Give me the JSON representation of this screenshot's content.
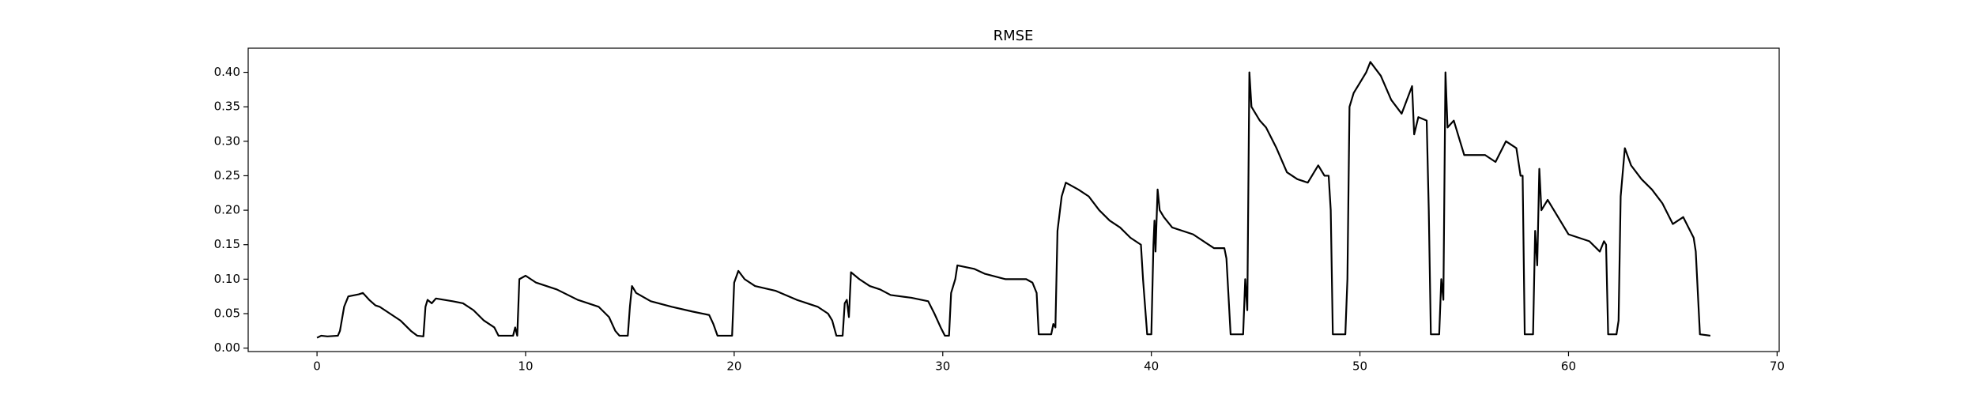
{
  "chart_data": {
    "type": "line",
    "title": "RMSE",
    "color": "#000000",
    "x": [
      0,
      0.2,
      0.5,
      1.0,
      1.1,
      1.3,
      1.5,
      2.0,
      2.2,
      2.5,
      2.8,
      3.0,
      3.5,
      4.0,
      4.5,
      4.8,
      5.1,
      5.2,
      5.3,
      5.5,
      5.7,
      6.5,
      7.0,
      7.5,
      8.0,
      8.5,
      8.7,
      9.4,
      9.5,
      9.6,
      9.7,
      10.0,
      10.5,
      11.5,
      12.5,
      13.5,
      14.0,
      14.3,
      14.5,
      14.9,
      15.0,
      15.1,
      15.3,
      16.0,
      17.0,
      18.0,
      18.8,
      19.0,
      19.2,
      19.9,
      20.0,
      20.2,
      20.5,
      21.0,
      22.0,
      23.0,
      24.0,
      24.5,
      24.7,
      24.9,
      25.2,
      25.3,
      25.4,
      25.5,
      25.6,
      26.0,
      26.5,
      27.0,
      27.5,
      28.5,
      29.3,
      29.6,
      29.9,
      30.1,
      30.3,
      30.4,
      30.6,
      30.7,
      31.5,
      32.0,
      33.0,
      34.0,
      34.3,
      34.5,
      34.6,
      35.2,
      35.3,
      35.4,
      35.5,
      35.7,
      35.9,
      36.5,
      37.0,
      37.5,
      38.0,
      38.5,
      39.0,
      39.5,
      39.6,
      39.8,
      40.0,
      40.1,
      40.15,
      40.2,
      40.3,
      40.4,
      40.6,
      41.0,
      42.0,
      43.0,
      43.5,
      43.6,
      43.8,
      44.4,
      44.5,
      44.6,
      44.7,
      44.8,
      45.2,
      45.5,
      46.0,
      46.5,
      47.0,
      47.5,
      48.0,
      48.3,
      48.5,
      48.6,
      48.7,
      49.3,
      49.4,
      49.5,
      49.7,
      50.0,
      50.3,
      50.5,
      51.0,
      51.5,
      52.0,
      52.5,
      52.6,
      52.8,
      53.2,
      53.3,
      53.4,
      53.8,
      53.9,
      54.0,
      54.1,
      54.2,
      54.5,
      55.0,
      55.5,
      56.0,
      56.5,
      57.0,
      57.5,
      57.7,
      57.8,
      57.9,
      58.3,
      58.4,
      58.5,
      58.6,
      58.7,
      59.0,
      59.5,
      60.0,
      61.0,
      61.5,
      61.7,
      61.8,
      61.9,
      62.3,
      62.4,
      62.5,
      62.7,
      63.0,
      63.5,
      64.0,
      64.5,
      65.0,
      65.5,
      66.0,
      66.1,
      66.3,
      66.8
    ],
    "values": [
      0.015,
      0.018,
      0.017,
      0.018,
      0.025,
      0.06,
      0.075,
      0.078,
      0.08,
      0.07,
      0.062,
      0.06,
      0.05,
      0.04,
      0.025,
      0.018,
      0.017,
      0.06,
      0.07,
      0.065,
      0.072,
      0.068,
      0.065,
      0.055,
      0.04,
      0.03,
      0.018,
      0.018,
      0.03,
      0.018,
      0.1,
      0.105,
      0.095,
      0.085,
      0.07,
      0.06,
      0.045,
      0.025,
      0.018,
      0.018,
      0.06,
      0.09,
      0.08,
      0.068,
      0.06,
      0.053,
      0.048,
      0.035,
      0.018,
      0.018,
      0.095,
      0.112,
      0.1,
      0.09,
      0.083,
      0.07,
      0.06,
      0.05,
      0.04,
      0.018,
      0.018,
      0.065,
      0.07,
      0.045,
      0.11,
      0.1,
      0.09,
      0.085,
      0.077,
      0.073,
      0.068,
      0.05,
      0.03,
      0.018,
      0.018,
      0.08,
      0.1,
      0.12,
      0.115,
      0.108,
      0.1,
      0.1,
      0.095,
      0.08,
      0.02,
      0.02,
      0.035,
      0.03,
      0.17,
      0.22,
      0.24,
      0.23,
      0.22,
      0.2,
      0.185,
      0.175,
      0.16,
      0.15,
      0.1,
      0.02,
      0.02,
      0.15,
      0.185,
      0.14,
      0.23,
      0.2,
      0.19,
      0.175,
      0.165,
      0.145,
      0.145,
      0.13,
      0.02,
      0.02,
      0.1,
      0.055,
      0.4,
      0.35,
      0.33,
      0.32,
      0.29,
      0.255,
      0.245,
      0.24,
      0.265,
      0.25,
      0.25,
      0.2,
      0.02,
      0.02,
      0.1,
      0.35,
      0.37,
      0.385,
      0.4,
      0.415,
      0.395,
      0.36,
      0.34,
      0.38,
      0.31,
      0.335,
      0.33,
      0.2,
      0.02,
      0.02,
      0.1,
      0.07,
      0.4,
      0.32,
      0.33,
      0.28,
      0.28,
      0.28,
      0.27,
      0.3,
      0.29,
      0.25,
      0.25,
      0.02,
      0.02,
      0.17,
      0.12,
      0.26,
      0.2,
      0.215,
      0.19,
      0.165,
      0.155,
      0.14,
      0.155,
      0.15,
      0.02,
      0.02,
      0.04,
      0.22,
      0.29,
      0.265,
      0.245,
      0.23,
      0.21,
      0.18,
      0.19,
      0.16,
      0.14,
      0.02,
      0.018
    ],
    "xlim": [
      -3.3,
      70.1
    ],
    "xticks": [
      0,
      10,
      20,
      30,
      40,
      50,
      60,
      70
    ],
    "ylim": [
      -0.005,
      0.435
    ],
    "yticks": [
      {
        "value": 0,
        "label": "0.00"
      },
      0.05,
      {
        "value": 0.1,
        "label": "0.10"
      },
      0.15,
      {
        "value": 0.2,
        "label": "0.20"
      },
      0.25,
      {
        "value": 0.3,
        "label": "0.30"
      },
      0.35,
      {
        "value": 0.4,
        "label": "0.40"
      }
    ]
  }
}
